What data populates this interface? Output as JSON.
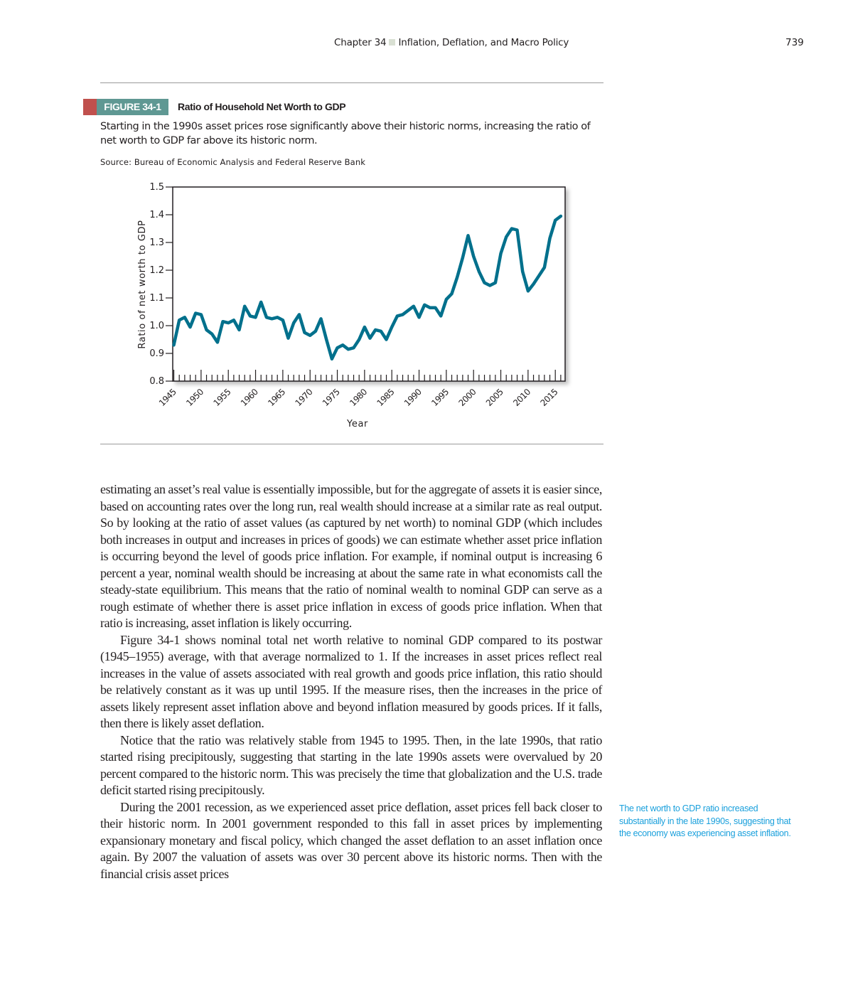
{
  "header": {
    "chapter": "Chapter 34",
    "chapter_title": "Inflation, Deflation, and Macro Policy",
    "page_number": "739"
  },
  "figure": {
    "label": "FIGURE 34-1",
    "title": "Ratio of Household Net Worth to GDP",
    "caption": "Starting in the 1990s asset prices rose significantly above their historic norms, increasing the ratio of net worth to GDP far above its historic norm.",
    "source": "Source: Bureau of Economic Analysis and Federal Reserve Bank",
    "colors": {
      "label_bg": "#5f9893",
      "label_accent": "#c0504d",
      "line": "#00708c"
    }
  },
  "chart_data": {
    "type": "line",
    "title": "Ratio of Household Net Worth to GDP",
    "xlabel": "Year",
    "ylabel": "Ratio of net worth to GDP",
    "xlim": [
      1944.8,
      2016.8
    ],
    "ylim": [
      0.8,
      1.5
    ],
    "x_ticks": [
      "1945",
      "1950",
      "1955",
      "1960",
      "1965",
      "1970",
      "1975",
      "1980",
      "1985",
      "1990",
      "1995",
      "2000",
      "2005",
      "2010",
      "2015"
    ],
    "y_ticks": [
      "0.8",
      "0.9",
      "1.0",
      "1.1",
      "1.2",
      "1.3",
      "1.4",
      "1.5"
    ],
    "grid": false,
    "series": [
      {
        "color": "#00708c",
        "x": [
          1945,
          1946,
          1947,
          1948,
          1949,
          1950,
          1951,
          1952,
          1953,
          1954,
          1955,
          1956,
          1957,
          1958,
          1959,
          1960,
          1961,
          1962,
          1963,
          1964,
          1965,
          1966,
          1967,
          1968,
          1969,
          1970,
          1971,
          1972,
          1973,
          1974,
          1975,
          1976,
          1977,
          1978,
          1979,
          1980,
          1981,
          1982,
          1983,
          1984,
          1985,
          1986,
          1987,
          1988,
          1989,
          1990,
          1991,
          1992,
          1993,
          1994,
          1995,
          1996,
          1997,
          1998,
          1999,
          2000,
          2001,
          2002,
          2003,
          2004,
          2005,
          2006,
          2007,
          2008,
          2009,
          2010,
          2011,
          2012,
          2013,
          2014,
          2015,
          2016
        ],
        "y": [
          0.93,
          1.02,
          1.03,
          0.995,
          1.045,
          1.04,
          0.985,
          0.97,
          0.94,
          1.015,
          1.01,
          1.02,
          0.985,
          1.07,
          1.035,
          1.03,
          1.085,
          1.03,
          1.025,
          1.03,
          1.02,
          0.955,
          1.01,
          1.04,
          0.975,
          0.965,
          0.98,
          1.025,
          0.95,
          0.88,
          0.92,
          0.93,
          0.915,
          0.92,
          0.95,
          0.995,
          0.955,
          0.985,
          0.98,
          0.95,
          0.995,
          1.035,
          1.04,
          1.055,
          1.07,
          1.03,
          1.075,
          1.065,
          1.065,
          1.035,
          1.095,
          1.115,
          1.175,
          1.245,
          1.325,
          1.25,
          1.195,
          1.155,
          1.145,
          1.155,
          1.26,
          1.32,
          1.35,
          1.345,
          1.195,
          1.125,
          1.15,
          1.18,
          1.21,
          1.315,
          1.38,
          1.395
        ]
      }
    ]
  },
  "body": {
    "paragraphs": [
      "estimating an asset’s real value is essentially impossible, but for the aggregate of assets it is easier since, based on accounting rates over the long run, real wealth should increase at a similar rate as real output. So by looking at the ratio of asset val­ues (as captured by net worth) to nominal GDP (which includes both increases in output and increases in prices of goods) we can estimate whether asset price inflation is occurring beyond the level of goods price inflation. For example, if nominal output is increasing 6 percent a year, nominal wealth should be increasing at about the same rate in what economists call the steady-state equilibrium. This means that the ratio of nominal wealth to nominal GDP can serve as a rough estimate of whether there is asset price inflation in excess of goods price inflation. When that ratio is increasing, asset inflation is likely occurring.",
      "Figure 34-1 shows nominal total net worth relative to nominal GDP compared to its postwar (1945–1955) average, with that average normalized to 1. If the increases in asset prices reflect real increases in the value of assets associated with real growth and goods price inflation, this ratio should be relatively constant as it was up until 1995. If the measure rises, then the increases in the price of assets likely represent asset infla­tion above and beyond inflation measured by goods prices. If it falls, then there is likely asset deflation.",
      "Notice that the ratio was relatively stable from 1945 to 1995. Then, in the late 1990s, that ratio started rising precipitously, suggesting that starting in the late 1990s assets were overvalued by 20 percent compared to the historic norm. This was precisely the time that globalization and the U.S. trade deficit started rising precipitously.",
      "During the 2001 recession, as we experienced asset price deflation, asset prices fell back closer to their historic norm. In 2001 government responded to this fall in asset prices by implementing expansionary monetary and fiscal policy, which changed the asset deflation to an asset inflation once again. By 2007 the valuation of assets was over 30 percent above its historic norms. Then with the financial crisis asset prices"
    ]
  },
  "margin_note": {
    "text": "The net worth to GDP ratio increased substantially in the late 1990s, suggesting that the economy was experiencing asset inflation.",
    "color": "#1aa0dc"
  }
}
